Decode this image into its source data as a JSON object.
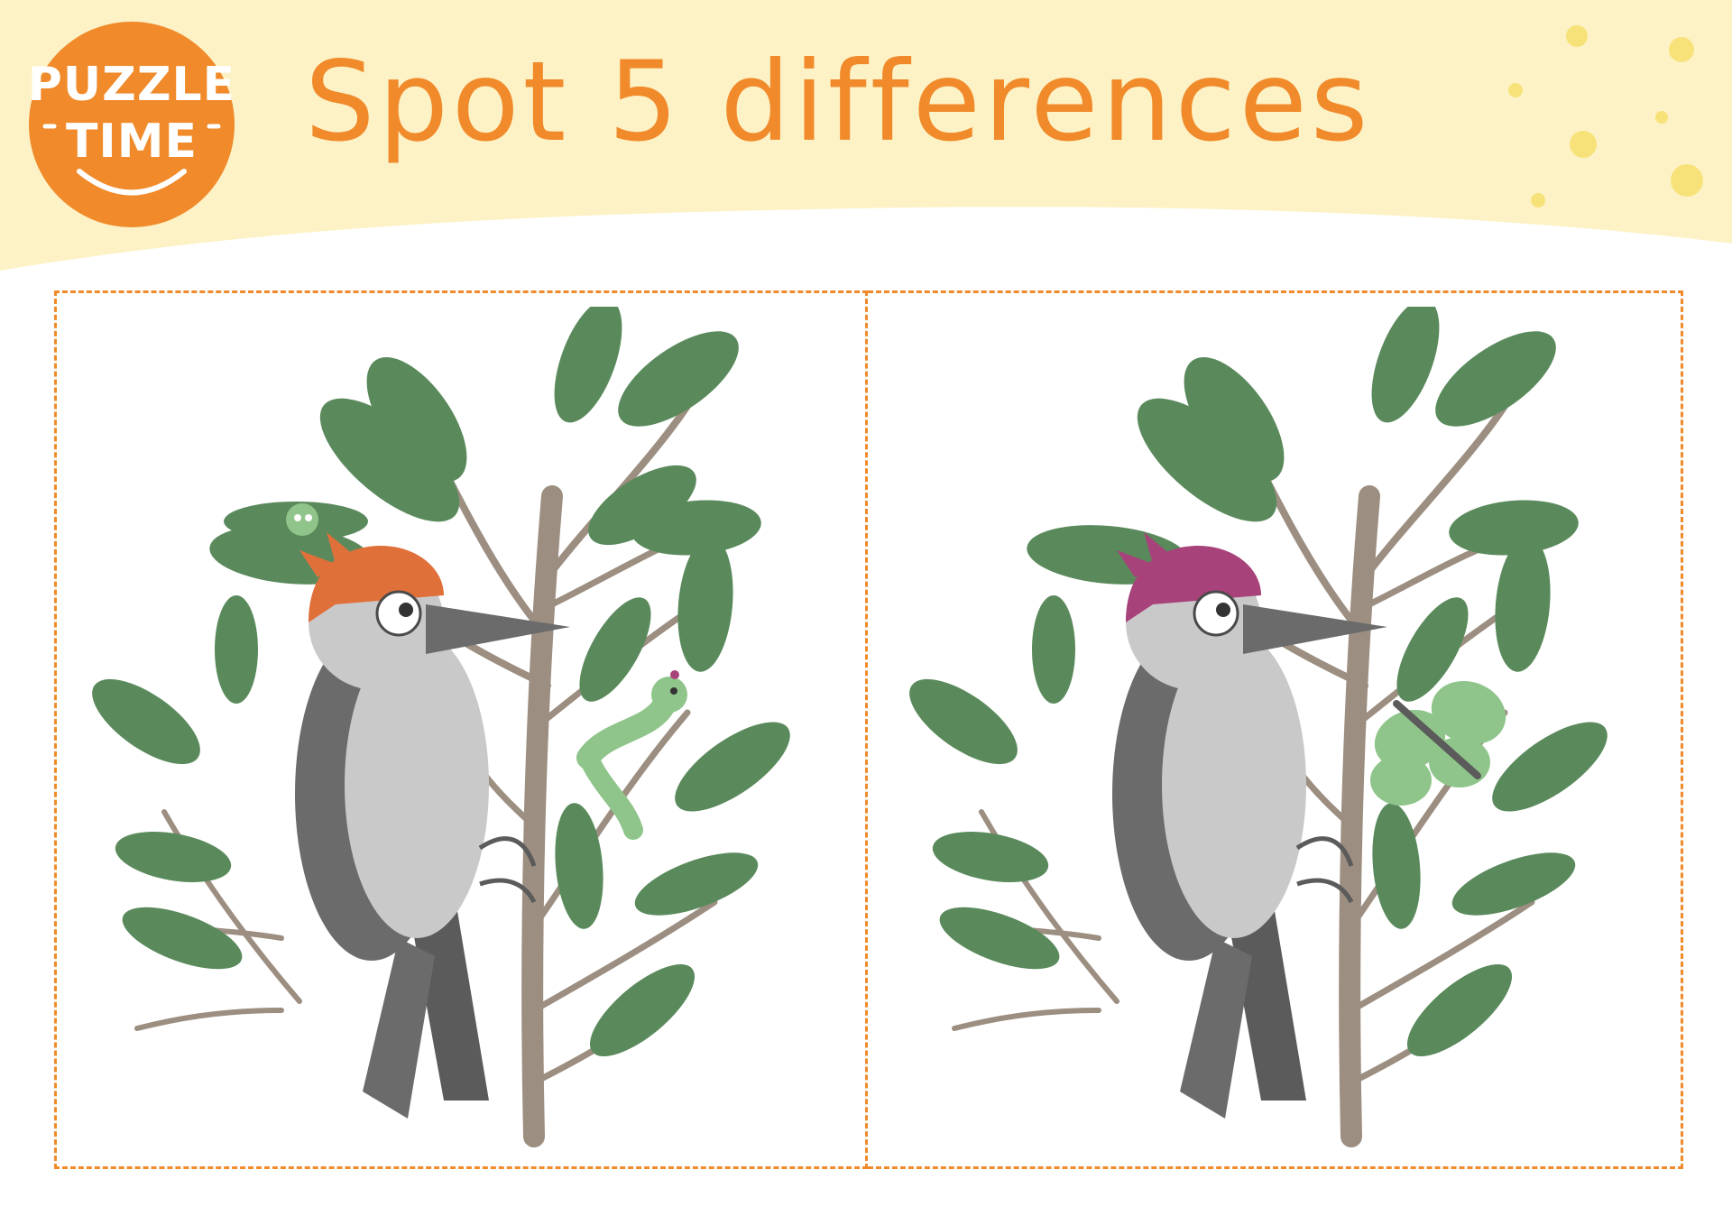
{
  "header": {
    "badge_line1": "PUZZLE",
    "badge_line2": "TIME",
    "title": "Spot 5 differences"
  },
  "colors": {
    "accent": "#f08a2a",
    "banner": "#fdf2c6",
    "dots": "#f7e27a",
    "leaf": "#5a8a5c",
    "branch": "#9c8e80",
    "bird_body_dark": "#6b6b6b",
    "bird_body_light": "#c9c9c9",
    "crest_left": "#e0703a",
    "crest_right": "#a7427a",
    "insect_green": "#8fc58a"
  },
  "panels": [
    {
      "name": "left-picture",
      "crest": "orange",
      "extras": [
        "spider",
        "caterpillar"
      ]
    },
    {
      "name": "right-picture",
      "crest": "purple",
      "extras": [
        "butterfly"
      ]
    }
  ]
}
